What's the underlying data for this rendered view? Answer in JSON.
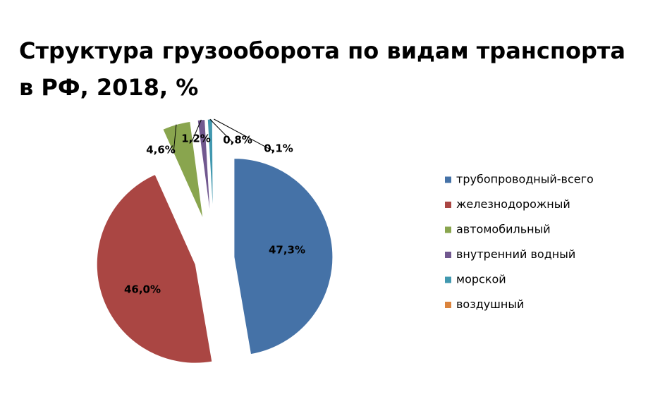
{
  "chart_data": {
    "type": "pie",
    "title": "Структура грузооборота по видам транспорта в РФ, 2018, %",
    "legend_position": "right",
    "slices": [
      {
        "label": "трубопроводный-всего",
        "value": 47.3,
        "display": "47,3%",
        "color": "#4572A7"
      },
      {
        "label": "железнодорожный",
        "value": 46.0,
        "display": "46,0%",
        "color": "#AA4643"
      },
      {
        "label": "автомобильный",
        "value": 4.6,
        "display": "4,6%",
        "color": "#89A54E"
      },
      {
        "label": "внутренний водный",
        "value": 1.2,
        "display": "1,2%",
        "color": "#71588F"
      },
      {
        "label": "морской",
        "value": 0.8,
        "display": "0,8%",
        "color": "#4198AF"
      },
      {
        "label": "воздушный",
        "value": 0.1,
        "display": "0,1%",
        "color": "#DB843D"
      }
    ]
  }
}
